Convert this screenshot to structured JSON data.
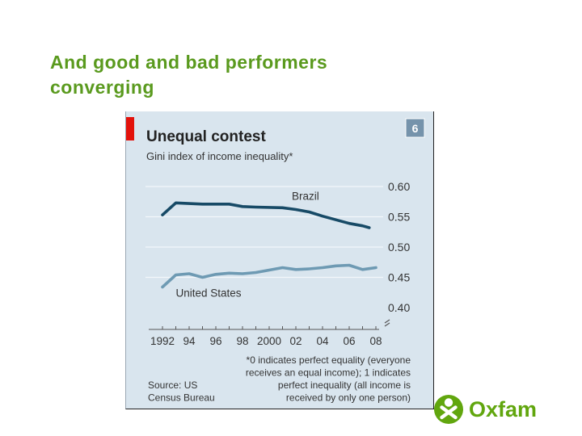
{
  "slide": {
    "title_lines": [
      "And good and bad performers",
      "converging"
    ],
    "colors": {
      "title": "#5a9a1e",
      "brand": "#61a60e"
    }
  },
  "chart_data": {
    "type": "line",
    "title": "Unequal contest",
    "subtitle": "Gini index of income inequality*",
    "chart_number": "6",
    "x": [
      1992,
      1993,
      1994,
      1995,
      1996,
      1997,
      1998,
      1999,
      2000,
      2001,
      2002,
      2003,
      2004,
      2005,
      2006,
      2007,
      2008
    ],
    "x_tick_labels": [
      {
        "year": 1992,
        "label": "1992"
      },
      {
        "year": 1994,
        "label": "94"
      },
      {
        "year": 1996,
        "label": "96"
      },
      {
        "year": 1998,
        "label": "98"
      },
      {
        "year": 2000,
        "label": "2000"
      },
      {
        "year": 2002,
        "label": "02"
      },
      {
        "year": 2004,
        "label": "04"
      },
      {
        "year": 2006,
        "label": "06"
      },
      {
        "year": 2008,
        "label": "08"
      }
    ],
    "y_ticks": [
      {
        "value": 0.6,
        "label": "0.60"
      },
      {
        "value": 0.55,
        "label": "0.55"
      },
      {
        "value": 0.5,
        "label": "0.50"
      },
      {
        "value": 0.45,
        "label": "0.45"
      },
      {
        "value": 0.4,
        "label": "0.40"
      }
    ],
    "ylim": [
      0.4,
      0.6
    ],
    "xlim": [
      1992,
      2008
    ],
    "series": [
      {
        "name": "Brazil",
        "color": "#174a66",
        "points": [
          [
            1992,
            0.553
          ],
          [
            1993,
            0.573
          ],
          [
            1995,
            0.571
          ],
          [
            1997,
            0.571
          ],
          [
            1998,
            0.567
          ],
          [
            1999,
            0.566
          ],
          [
            2001,
            0.565
          ],
          [
            2002,
            0.562
          ],
          [
            2003,
            0.558
          ],
          [
            2004,
            0.551
          ],
          [
            2005,
            0.545
          ],
          [
            2006,
            0.539
          ],
          [
            2007,
            0.535
          ],
          [
            2007.5,
            0.532
          ]
        ]
      },
      {
        "name": "United States",
        "color": "#6e9ab3",
        "points": [
          [
            1992,
            0.434
          ],
          [
            1993,
            0.454
          ],
          [
            1994,
            0.456
          ],
          [
            1995,
            0.45
          ],
          [
            1996,
            0.455
          ],
          [
            1997,
            0.457
          ],
          [
            1998,
            0.456
          ],
          [
            1999,
            0.458
          ],
          [
            2000,
            0.462
          ],
          [
            2001,
            0.466
          ],
          [
            2002,
            0.463
          ],
          [
            2003,
            0.464
          ],
          [
            2004,
            0.466
          ],
          [
            2005,
            0.469
          ],
          [
            2006,
            0.47
          ],
          [
            2007,
            0.463
          ],
          [
            2008,
            0.466
          ]
        ]
      }
    ],
    "footnote": [
      "*0 indicates perfect equality (everyone",
      "receives an equal income); 1 indicates",
      "perfect inequality (all income is",
      "received by only one person)"
    ],
    "source": [
      "Source: US",
      "Census Bureau"
    ],
    "colors": {
      "accent": "#e3120b",
      "panel": "#d9e5ee",
      "badge": "#7593ab",
      "text": "#333333"
    }
  },
  "brand": {
    "name": "Oxfam"
  }
}
